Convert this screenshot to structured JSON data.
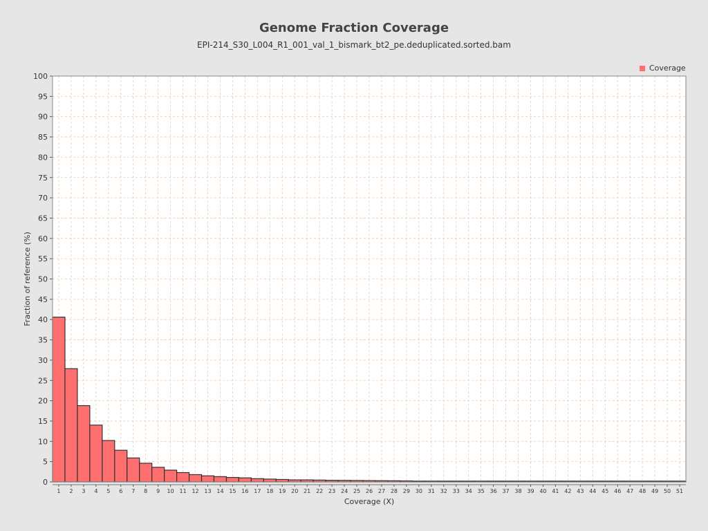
{
  "chart_data": {
    "type": "bar",
    "title": "Genome Fraction Coverage",
    "subtitle": "EPI-214_S30_L004_R1_001_val_1_bismark_bt2_pe.deduplicated.sorted.bam",
    "xlabel": "Coverage (X)",
    "ylabel": "Fraction of reference (%)",
    "ylim": [
      0,
      100
    ],
    "yticks": [
      0,
      5,
      10,
      15,
      20,
      25,
      30,
      35,
      40,
      45,
      50,
      55,
      60,
      65,
      70,
      75,
      80,
      85,
      90,
      95,
      100
    ],
    "grid": true,
    "legend": {
      "position": "top-right",
      "entries": [
        "Coverage"
      ]
    },
    "categories": [
      "1",
      "2",
      "3",
      "4",
      "5",
      "6",
      "7",
      "8",
      "9",
      "10",
      "11",
      "12",
      "13",
      "14",
      "15",
      "16",
      "17",
      "18",
      "19",
      "20",
      "21",
      "22",
      "23",
      "24",
      "25",
      "26",
      "27",
      "28",
      "29",
      "30",
      "31",
      "32",
      "33",
      "34",
      "35",
      "36",
      "37",
      "38",
      "39",
      "40",
      "41",
      "42",
      "43",
      "44",
      "45",
      "46",
      "47",
      "48",
      "49",
      "50",
      "51"
    ],
    "series": [
      {
        "name": "Coverage",
        "color": "#ff6f6f",
        "values": [
          40.6,
          27.9,
          18.8,
          14.0,
          10.2,
          7.8,
          5.9,
          4.6,
          3.6,
          2.9,
          2.3,
          1.8,
          1.5,
          1.3,
          1.1,
          1.0,
          0.8,
          0.7,
          0.6,
          0.5,
          0.5,
          0.45,
          0.4,
          0.38,
          0.35,
          0.32,
          0.3,
          0.28,
          0.25,
          0.2,
          0.2,
          0.2,
          0.2,
          0.2,
          0.2,
          0.2,
          0.2,
          0.2,
          0.2,
          0.2,
          0.2,
          0.2,
          0.2,
          0.2,
          0.2,
          0.2,
          0.2,
          0.2,
          0.2,
          0.2,
          0.2
        ]
      }
    ]
  }
}
